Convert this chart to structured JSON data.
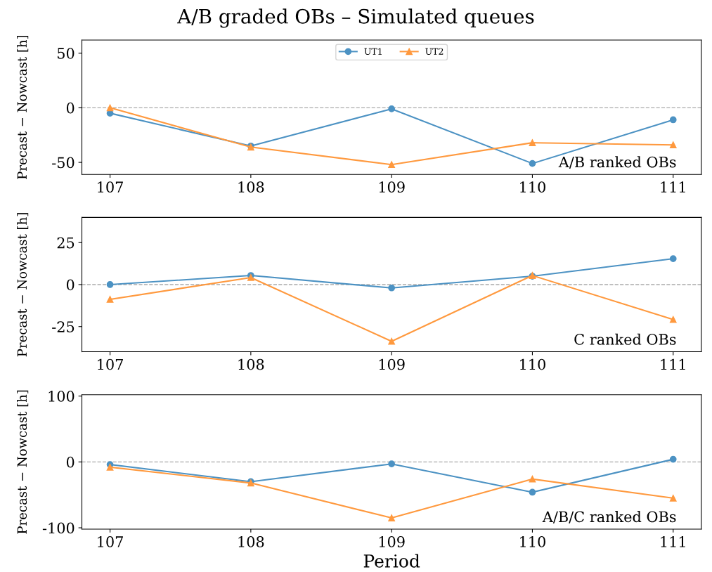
{
  "chart_data": [
    {
      "type": "line",
      "title": "A/B graded OBs – Simulated queues",
      "ylabel": "Precast − Nowcast [h]",
      "x": [
        107,
        108,
        109,
        110,
        111
      ],
      "xlim": [
        106.8,
        111.2
      ],
      "xticks": [
        107,
        108,
        109,
        110,
        111
      ],
      "ylim": [
        -61,
        62
      ],
      "yticks": [
        -50,
        0,
        50
      ],
      "legend": "top",
      "grid": false,
      "series": [
        {
          "name": "UT1",
          "color": "#4c92c3",
          "marker": "circle",
          "values": [
            -5,
            -35,
            -1,
            -51,
            -11
          ]
        },
        {
          "name": "UT2",
          "color": "#ff993e",
          "marker": "triangle",
          "values": [
            0,
            -36,
            -52,
            -32,
            -34
          ]
        }
      ],
      "ref_lines": [
        {
          "axis": "y",
          "value": 0,
          "color": "#aaaaaa",
          "line_style": "dashed"
        }
      ],
      "annotations": [
        "A/B ranked OBs"
      ]
    },
    {
      "type": "line",
      "ylabel": "Precast − Nowcast [h]",
      "x": [
        107,
        108,
        109,
        110,
        111
      ],
      "xlim": [
        106.8,
        111.2
      ],
      "xticks": [
        107,
        108,
        109,
        110,
        111
      ],
      "ylim": [
        -40,
        40
      ],
      "yticks": [
        -25,
        0,
        25
      ],
      "legend": false,
      "grid": false,
      "series": [
        {
          "color": "#4c92c3",
          "marker": "circle",
          "values": [
            0,
            5.4,
            -2,
            5,
            15.4
          ]
        },
        {
          "color": "#ff993e",
          "marker": "triangle",
          "values": [
            -8.8,
            4.2,
            -33.8,
            5.4,
            -20.8
          ]
        }
      ],
      "ref_lines": [
        {
          "axis": "y",
          "value": 0,
          "color": "#aaaaaa",
          "line_style": "dashed"
        }
      ],
      "annotations": [
        "C ranked OBs"
      ]
    },
    {
      "type": "line",
      "xlabel": "Period",
      "ylabel": "Precast − Nowcast [h]",
      "x": [
        107,
        108,
        109,
        110,
        111
      ],
      "xlim": [
        106.8,
        111.2
      ],
      "xticks": [
        107,
        108,
        109,
        110,
        111
      ],
      "ylim": [
        -102,
        102
      ],
      "yticks": [
        -100,
        0,
        100
      ],
      "legend": false,
      "grid": false,
      "series": [
        {
          "color": "#4c92c3",
          "marker": "circle",
          "values": [
            -4,
            -30,
            -3,
            -46,
            4
          ]
        },
        {
          "color": "#ff993e",
          "marker": "triangle",
          "values": [
            -8,
            -32,
            -85,
            -26,
            -55
          ]
        }
      ],
      "ref_lines": [
        {
          "axis": "y",
          "value": 0,
          "color": "#aaaaaa",
          "line_style": "dashed"
        }
      ],
      "annotations": [
        "A/B/C ranked OBs"
      ]
    }
  ]
}
